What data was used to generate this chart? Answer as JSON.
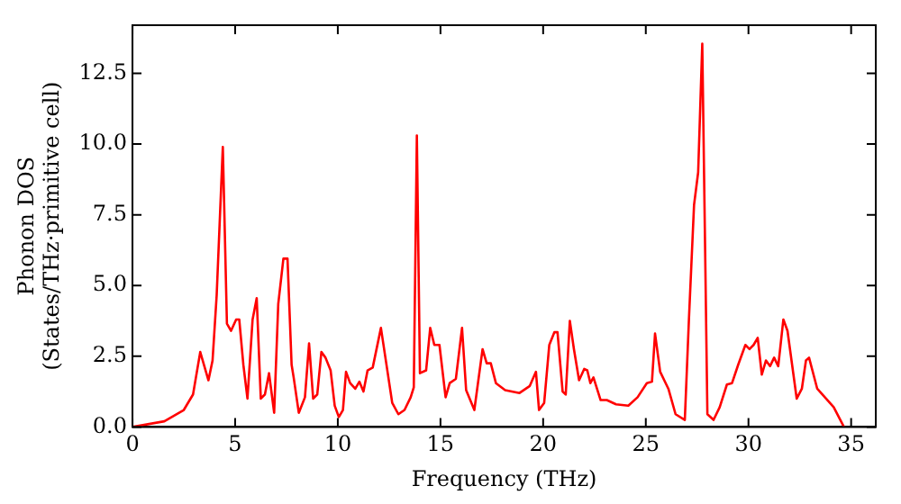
{
  "chart_data": {
    "type": "line",
    "xlabel": "Frequency (THz)",
    "ylabel": "Phonon DOS\n(States/THz·primitive cell)",
    "x": [
      0,
      1.55,
      2.5,
      2.95,
      3.3,
      3.7,
      3.9,
      4.1,
      4.4,
      4.6,
      4.8,
      5.05,
      5.2,
      5.4,
      5.6,
      5.85,
      6.05,
      6.25,
      6.45,
      6.65,
      6.9,
      7.1,
      7.35,
      7.55,
      7.75,
      7.85,
      8.1,
      8.4,
      8.6,
      8.8,
      9.0,
      9.2,
      9.4,
      9.65,
      9.85,
      10.05,
      10.25,
      10.4,
      10.6,
      10.85,
      11.05,
      11.25,
      11.45,
      11.7,
      12.1,
      12.65,
      12.95,
      13.25,
      13.55,
      13.7,
      13.85,
      14.0,
      14.3,
      14.5,
      14.7,
      14.95,
      15.25,
      15.45,
      15.75,
      16.05,
      16.25,
      16.65,
      17.05,
      17.25,
      17.45,
      17.7,
      18.15,
      18.85,
      19.35,
      19.65,
      19.8,
      20.05,
      20.3,
      20.55,
      20.7,
      20.95,
      21.1,
      21.3,
      21.5,
      21.75,
      22.0,
      22.15,
      22.3,
      22.45,
      22.8,
      23.1,
      23.55,
      24.15,
      24.6,
      25.05,
      25.3,
      25.45,
      25.7,
      26.1,
      26.45,
      26.9,
      27.1,
      27.35,
      27.55,
      27.75,
      28.0,
      28.3,
      28.6,
      28.95,
      29.2,
      29.5,
      29.85,
      30.05,
      30.25,
      30.45,
      30.65,
      30.85,
      31.05,
      31.25,
      31.45,
      31.7,
      31.9,
      32.35,
      32.6,
      32.8,
      32.95,
      33.35,
      34.15,
      34.65
    ],
    "series": [
      {
        "color": "#ff0000",
        "values": [
          0,
          0.2,
          0.6,
          1.15,
          2.65,
          1.65,
          2.35,
          4.65,
          9.9,
          3.65,
          3.4,
          3.8,
          3.8,
          2.2,
          1.0,
          3.8,
          4.55,
          1.0,
          1.15,
          1.9,
          0.5,
          4.35,
          5.95,
          5.95,
          2.2,
          1.75,
          0.5,
          1.05,
          2.95,
          1.0,
          1.15,
          2.65,
          2.45,
          2.0,
          0.75,
          0.35,
          0.6,
          1.95,
          1.55,
          1.35,
          1.6,
          1.25,
          2.0,
          2.1,
          3.5,
          0.85,
          0.45,
          0.6,
          1.05,
          1.4,
          10.3,
          1.9,
          2.0,
          3.5,
          2.9,
          2.9,
          1.05,
          1.55,
          1.7,
          3.5,
          1.3,
          0.6,
          2.75,
          2.25,
          2.25,
          1.55,
          1.3,
          1.2,
          1.45,
          1.95,
          0.6,
          0.85,
          2.9,
          3.35,
          3.35,
          1.25,
          1.15,
          3.75,
          2.75,
          1.65,
          2.05,
          2.0,
          1.55,
          1.75,
          0.95,
          0.95,
          0.8,
          0.75,
          1.05,
          1.55,
          1.6,
          3.3,
          1.95,
          1.35,
          0.45,
          0.25,
          3.8,
          7.85,
          9.0,
          13.55,
          0.45,
          0.25,
          0.7,
          1.5,
          1.55,
          2.2,
          2.9,
          2.75,
          2.9,
          3.15,
          1.85,
          2.35,
          2.15,
          2.45,
          2.15,
          3.8,
          3.4,
          1.0,
          1.35,
          2.35,
          2.45,
          1.35,
          0.7,
          0
        ]
      }
    ],
    "xlim": [
      0,
      36.2
    ],
    "xticks": [
      0,
      5,
      10,
      15,
      20,
      25,
      30,
      35
    ],
    "ylim": [
      0,
      14.2
    ],
    "yticks": [
      {
        "value": 0,
        "label": "0.0"
      },
      {
        "value": 2.5,
        "label": "2.5"
      },
      {
        "value": 5,
        "label": "5.0"
      },
      {
        "value": 7.5,
        "label": "7.5"
      },
      {
        "value": 10,
        "label": "10.0"
      },
      {
        "value": 12.5,
        "label": "12.5"
      }
    ],
    "grid": false,
    "legend": false,
    "marker": "none",
    "line_style": "solid"
  }
}
